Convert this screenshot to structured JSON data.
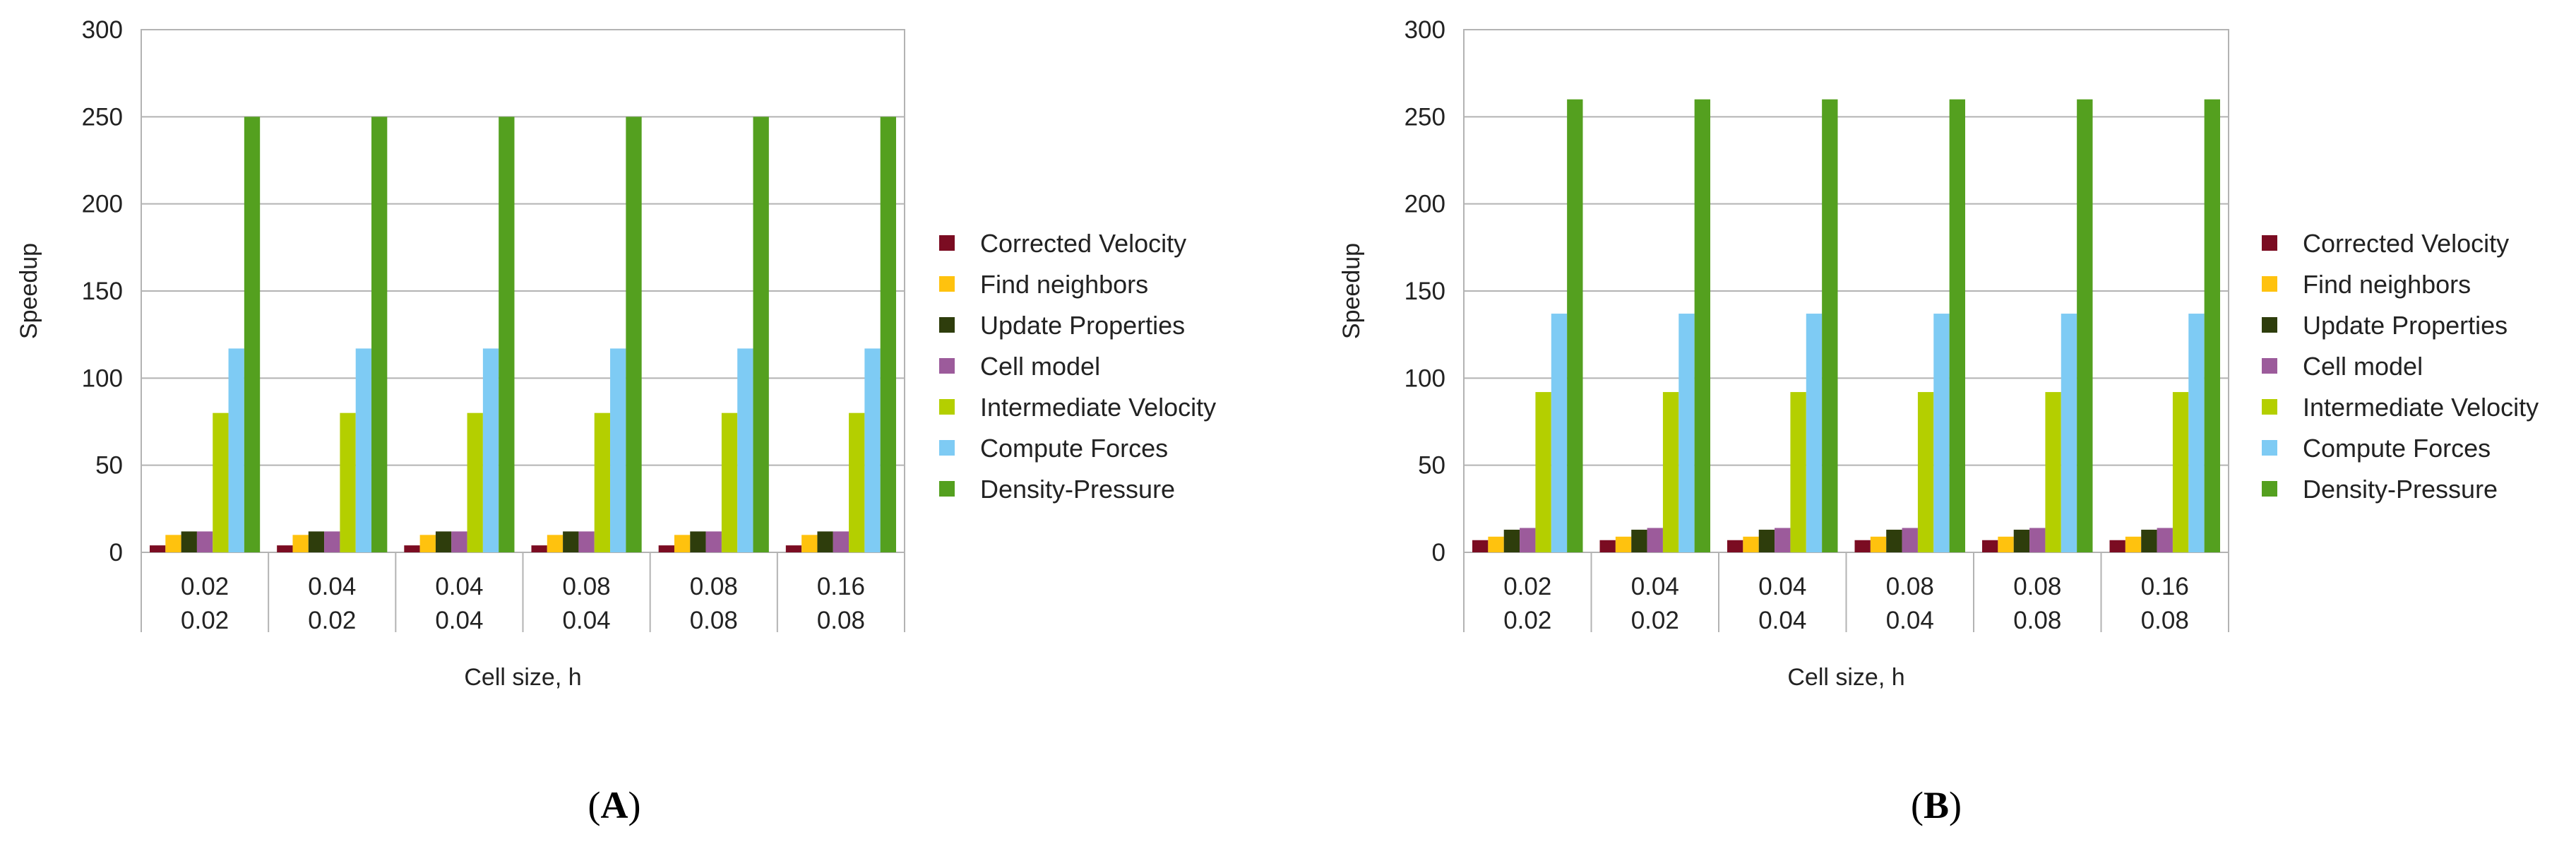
{
  "chart_data": [
    {
      "type": "bar",
      "panel_label": "A",
      "title": "",
      "xlabel": "Cell size, h",
      "ylabel": "Speedup",
      "ylim": [
        0,
        300
      ],
      "yticks": [
        0,
        50,
        100,
        150,
        200,
        250,
        300
      ],
      "grid": true,
      "legend_position": "right",
      "categories": [
        [
          "0.02",
          "0.02"
        ],
        [
          "0.04",
          "0.02"
        ],
        [
          "0.04",
          "0.04"
        ],
        [
          "0.08",
          "0.04"
        ],
        [
          "0.08",
          "0.08"
        ],
        [
          "0.16",
          "0.08"
        ]
      ],
      "series": [
        {
          "name": "Corrected Velocity",
          "color": "#7b0c22",
          "values": [
            4,
            4,
            4,
            4,
            4,
            4
          ]
        },
        {
          "name": "Find neighbors",
          "color": "#ffc20e",
          "values": [
            10,
            10,
            10,
            10,
            10,
            10
          ]
        },
        {
          "name": "Update Properties",
          "color": "#2e3d0c",
          "values": [
            12,
            12,
            12,
            12,
            12,
            12
          ]
        },
        {
          "name": "Cell model",
          "color": "#9c5b9b",
          "values": [
            12,
            12,
            12,
            12,
            12,
            12
          ]
        },
        {
          "name": "Intermediate Velocity",
          "color": "#b4cf00",
          "values": [
            80,
            80,
            80,
            80,
            80,
            80
          ]
        },
        {
          "name": "Compute Forces",
          "color": "#7ecbf4",
          "values": [
            117,
            117,
            117,
            117,
            117,
            117
          ]
        },
        {
          "name": "Density-Pressure",
          "color": "#54a01f",
          "values": [
            250,
            250,
            250,
            250,
            250,
            250
          ]
        }
      ]
    },
    {
      "type": "bar",
      "panel_label": "B",
      "title": "",
      "xlabel": "Cell size, h",
      "ylabel": "Speedup",
      "ylim": [
        0,
        300
      ],
      "yticks": [
        0,
        50,
        100,
        150,
        200,
        250,
        300
      ],
      "grid": true,
      "legend_position": "right",
      "categories": [
        [
          "0.02",
          "0.02"
        ],
        [
          "0.04",
          "0.02"
        ],
        [
          "0.04",
          "0.04"
        ],
        [
          "0.08",
          "0.04"
        ],
        [
          "0.08",
          "0.08"
        ],
        [
          "0.16",
          "0.08"
        ]
      ],
      "series": [
        {
          "name": "Corrected Velocity",
          "color": "#7b0c22",
          "values": [
            7,
            7,
            7,
            7,
            7,
            7
          ]
        },
        {
          "name": "Find neighbors",
          "color": "#ffc20e",
          "values": [
            9,
            9,
            9,
            9,
            9,
            9
          ]
        },
        {
          "name": "Update Properties",
          "color": "#2e3d0c",
          "values": [
            13,
            13,
            13,
            13,
            13,
            13
          ]
        },
        {
          "name": "Cell model",
          "color": "#9c5b9b",
          "values": [
            14,
            14,
            14,
            14,
            14,
            14
          ]
        },
        {
          "name": "Intermediate Velocity",
          "color": "#b4cf00",
          "values": [
            92,
            92,
            92,
            92,
            92,
            92
          ]
        },
        {
          "name": "Compute Forces",
          "color": "#7ecbf4",
          "values": [
            137,
            137,
            137,
            137,
            137,
            137
          ]
        },
        {
          "name": "Density-Pressure",
          "color": "#54a01f",
          "values": [
            260,
            260,
            260,
            260,
            260,
            260
          ]
        }
      ]
    }
  ]
}
